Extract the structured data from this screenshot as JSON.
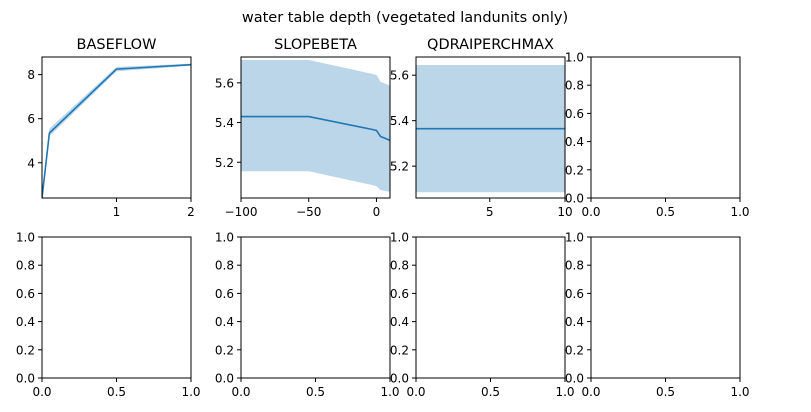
{
  "title": "water table depth (vegetated landunits only)",
  "colors": {
    "line": "#1f77b4",
    "band": "#1f77b4",
    "band_opacity": 0.3,
    "axis": "#000000"
  },
  "chart_data": [
    {
      "type": "line",
      "title": "BASEFLOW",
      "xlim": [
        0.001,
        2
      ],
      "ylim": [
        2.4,
        8.8
      ],
      "xticks": [
        1,
        2
      ],
      "yticks": [
        4,
        6,
        8
      ],
      "series": [
        {
          "x": [
            0.001,
            0.1,
            1,
            2
          ],
          "y": [
            2.4,
            5.35,
            8.25,
            8.45
          ],
          "lower": [
            2.35,
            5.2,
            8.15,
            8.4
          ],
          "upper": [
            2.45,
            5.55,
            8.35,
            8.5
          ]
        }
      ]
    },
    {
      "type": "line",
      "title": "SLOPEBETA",
      "xlim": [
        -100,
        10
      ],
      "ylim": [
        5.02,
        5.73
      ],
      "xticks": [
        -100,
        -50,
        0
      ],
      "yticks": [
        5.2,
        5.4,
        5.6
      ],
      "series": [
        {
          "x": [
            -100,
            -50,
            -3,
            0,
            3,
            10
          ],
          "y": [
            5.43,
            5.43,
            5.365,
            5.36,
            5.33,
            5.31
          ],
          "lower": [
            5.155,
            5.155,
            5.085,
            5.08,
            5.06,
            5.05
          ],
          "upper": [
            5.715,
            5.715,
            5.645,
            5.64,
            5.605,
            5.585
          ]
        }
      ]
    },
    {
      "type": "line",
      "title": "QDRAIPERCHMAX",
      "xlim": [
        0.1,
        10
      ],
      "ylim": [
        5.06,
        5.68
      ],
      "xticks": [
        5,
        10
      ],
      "yticks": [
        5.2,
        5.4,
        5.6
      ],
      "series": [
        {
          "x": [
            0.1,
            10
          ],
          "y": [
            5.365,
            5.365
          ],
          "lower": [
            5.085,
            5.085
          ],
          "upper": [
            5.645,
            5.645
          ]
        }
      ]
    },
    {
      "type": "line",
      "title": "",
      "xlim": [
        0,
        1
      ],
      "ylim": [
        0,
        1
      ],
      "xticks": [
        0.0,
        0.5,
        1.0
      ],
      "yticks": [
        0.0,
        0.2,
        0.4,
        0.6,
        0.8,
        1.0
      ],
      "series": []
    },
    {
      "type": "line",
      "title": "",
      "xlim": [
        0,
        1
      ],
      "ylim": [
        0,
        1
      ],
      "xticks": [
        0.0,
        0.5,
        1.0
      ],
      "yticks": [
        0.0,
        0.2,
        0.4,
        0.6,
        0.8,
        1.0
      ],
      "series": []
    },
    {
      "type": "line",
      "title": "",
      "xlim": [
        0,
        1
      ],
      "ylim": [
        0,
        1
      ],
      "xticks": [
        0.0,
        0.5,
        1.0
      ],
      "yticks": [
        0.0,
        0.2,
        0.4,
        0.6,
        0.8,
        1.0
      ],
      "series": []
    },
    {
      "type": "line",
      "title": "",
      "xlim": [
        0,
        1
      ],
      "ylim": [
        0,
        1
      ],
      "xticks": [
        0.0,
        0.5,
        1.0
      ],
      "yticks": [
        0.0,
        0.2,
        0.4,
        0.6,
        0.8,
        1.0
      ],
      "series": []
    },
    {
      "type": "line",
      "title": "",
      "xlim": [
        0,
        1
      ],
      "ylim": [
        0,
        1
      ],
      "xticks": [
        0.0,
        0.5,
        1.0
      ],
      "yticks": [
        0.0,
        0.2,
        0.4,
        0.6,
        0.8,
        1.0
      ],
      "series": []
    }
  ]
}
